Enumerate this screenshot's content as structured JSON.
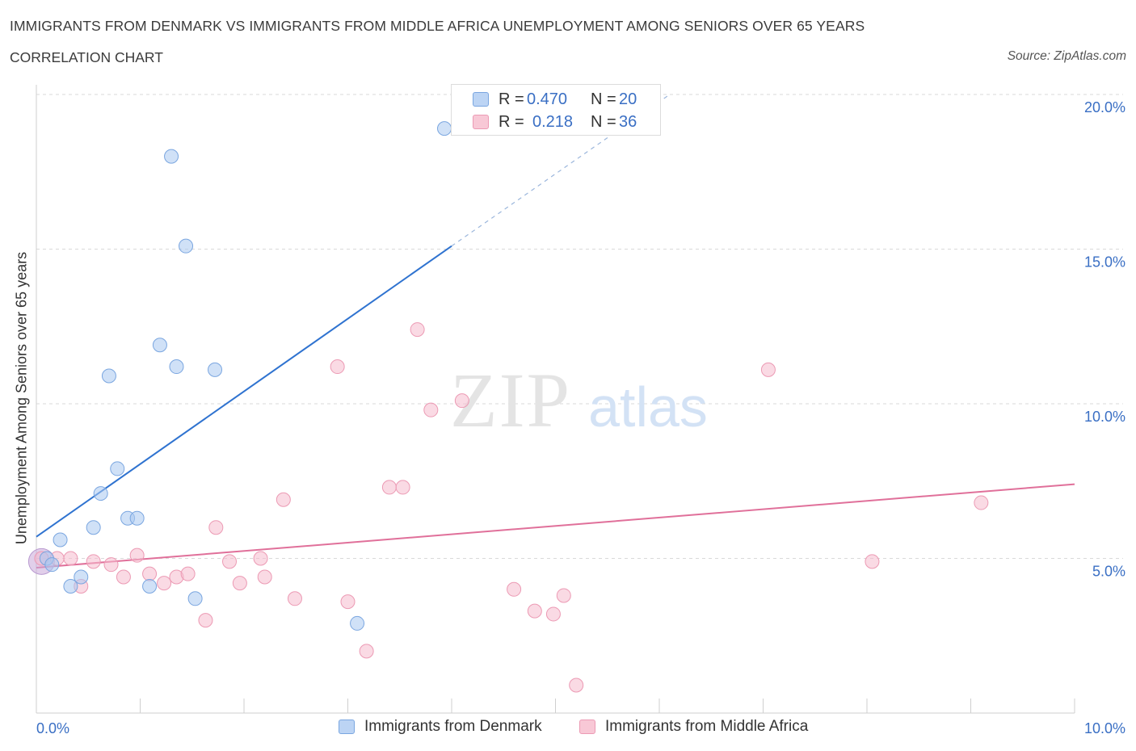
{
  "header": {
    "title": "IMMIGRANTS FROM DENMARK VS IMMIGRANTS FROM MIDDLE AFRICA UNEMPLOYMENT AMONG SENIORS OVER 65 YEARS",
    "subtitle": "CORRELATION CHART",
    "source": "Source: ZipAtlas.com"
  },
  "legend": {
    "r_label": "R =",
    "n_label": "N =",
    "series": [
      {
        "name": "Immigrants from Denmark",
        "r": "0.470",
        "n": "20"
      },
      {
        "name": "Immigrants from Middle Africa",
        "r": "0.218",
        "n": "36"
      }
    ]
  },
  "watermark": {
    "zip": "ZIP",
    "atlas": "atlas"
  },
  "colors": {
    "denmark_fill": "#aac8f0",
    "denmark_stroke": "#7aa6e0",
    "denmark_line": "#2f73d0",
    "africa_fill": "#f5bccd",
    "africa_stroke": "#ec9ab4",
    "africa_line": "#e0709a",
    "tick_text": "#3a6fc4",
    "grid": "#d9d9d9"
  },
  "chart_data": {
    "type": "scatter",
    "title": "IMMIGRANTS FROM DENMARK VS IMMIGRANTS FROM MIDDLE AFRICA UNEMPLOYMENT AMONG SENIORS OVER 65 YEARS",
    "xlabel": "",
    "ylabel": "Unemployment Among Seniors over 65 years",
    "xlim": [
      0,
      10
    ],
    "ylim": [
      0,
      20
    ],
    "x_tick_labels": [
      "0.0%",
      "10.0%"
    ],
    "y_ticks": [
      5,
      10,
      15,
      20
    ],
    "y_tick_labels": [
      "5.0%",
      "10.0%",
      "15.0%",
      "20.0%"
    ],
    "series": [
      {
        "name": "Immigrants from Denmark",
        "points": [
          [
            0.1,
            5.0
          ],
          [
            0.15,
            4.8
          ],
          [
            0.23,
            5.6
          ],
          [
            0.33,
            4.1
          ],
          [
            0.43,
            4.4
          ],
          [
            0.55,
            6.0
          ],
          [
            0.7,
            10.9
          ],
          [
            0.62,
            7.1
          ],
          [
            0.78,
            7.9
          ],
          [
            0.88,
            6.3
          ],
          [
            0.97,
            6.3
          ],
          [
            1.09,
            4.1
          ],
          [
            1.19,
            11.9
          ],
          [
            1.3,
            18.0
          ],
          [
            1.35,
            11.2
          ],
          [
            1.44,
            15.1
          ],
          [
            1.53,
            3.7
          ],
          [
            1.72,
            11.1
          ],
          [
            3.09,
            2.9
          ],
          [
            3.93,
            18.9
          ]
        ],
        "trend": {
          "x": [
            0,
            4.0
          ],
          "y": [
            5.7,
            15.1
          ],
          "dashed_extension": {
            "x": [
              4.0,
              6.1
            ],
            "y": [
              15.1,
              20.0
            ]
          }
        }
      },
      {
        "name": "Immigrants from Middle Africa",
        "points": [
          [
            0.05,
            5.0
          ],
          [
            0.2,
            5.0
          ],
          [
            0.33,
            5.0
          ],
          [
            0.43,
            4.1
          ],
          [
            0.55,
            4.9
          ],
          [
            0.72,
            4.8
          ],
          [
            0.84,
            4.4
          ],
          [
            0.97,
            5.1
          ],
          [
            1.09,
            4.5
          ],
          [
            1.23,
            4.2
          ],
          [
            1.35,
            4.4
          ],
          [
            1.46,
            4.5
          ],
          [
            1.63,
            3.0
          ],
          [
            1.73,
            6.0
          ],
          [
            1.86,
            4.9
          ],
          [
            1.96,
            4.2
          ],
          [
            2.16,
            5.0
          ],
          [
            2.2,
            4.4
          ],
          [
            2.38,
            6.9
          ],
          [
            2.49,
            3.7
          ],
          [
            2.9,
            11.2
          ],
          [
            3.0,
            3.6
          ],
          [
            3.18,
            2.0
          ],
          [
            3.4,
            7.3
          ],
          [
            3.53,
            7.3
          ],
          [
            3.67,
            12.4
          ],
          [
            3.8,
            9.8
          ],
          [
            4.1,
            10.1
          ],
          [
            4.6,
            4.0
          ],
          [
            4.8,
            3.3
          ],
          [
            4.98,
            3.2
          ],
          [
            5.08,
            3.8
          ],
          [
            5.2,
            0.9
          ],
          [
            7.05,
            11.1
          ],
          [
            8.05,
            4.9
          ],
          [
            9.1,
            6.8
          ]
        ],
        "trend": {
          "x": [
            0,
            10
          ],
          "y": [
            4.7,
            7.4
          ]
        }
      }
    ]
  }
}
